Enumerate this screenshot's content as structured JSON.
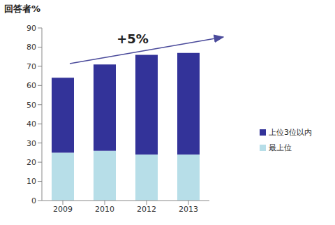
{
  "chart_data": {
    "type": "bar",
    "y_label": "回答者%",
    "annotation": "+5%",
    "categories": [
      "2009",
      "2010",
      "2012",
      "2013"
    ],
    "series": [
      {
        "name": "最上位",
        "color": "#b7dee8",
        "values": [
          25,
          26,
          24,
          24
        ]
      },
      {
        "name": "上位3位以内",
        "color": "#333399",
        "values": [
          39,
          45,
          52,
          53
        ]
      }
    ],
    "ylim": [
      0,
      90
    ],
    "yticks": [
      0,
      10,
      20,
      30,
      40,
      50,
      60,
      70,
      80,
      90
    ],
    "stacked": true,
    "grid": false,
    "legend": "right"
  }
}
